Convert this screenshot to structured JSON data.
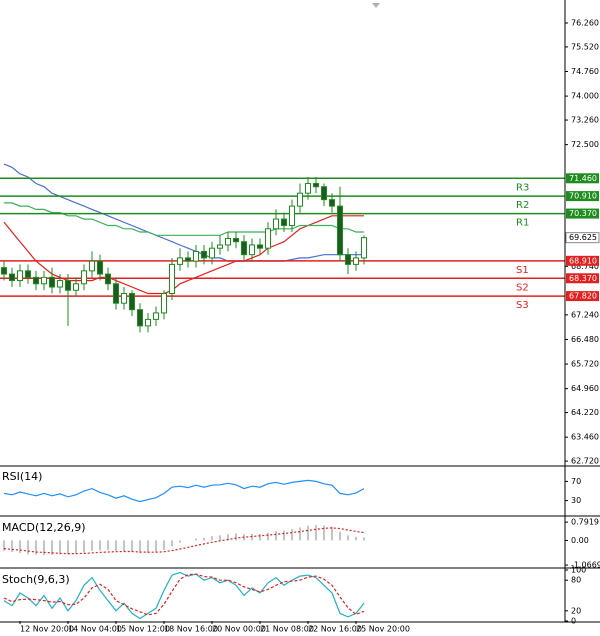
{
  "chart_data": [
    {
      "type": "candlestick",
      "categories": [
        null,
        null,
        "12 Nov 20:00",
        null,
        null,
        null,
        null,
        null,
        "14 Nov 04:00",
        null,
        null,
        null,
        null,
        null,
        "15 Nov 12:00",
        null,
        null,
        null,
        null,
        null,
        "18 Nov 16:00",
        null,
        null,
        null,
        null,
        null,
        "20 Nov 00:00",
        null,
        null,
        null,
        null,
        null,
        "21 Nov 08:00",
        null,
        null,
        null,
        null,
        null,
        "22 Nov 16:00",
        null,
        null,
        null,
        null,
        null,
        "25 Nov 20:00",
        null
      ],
      "open": [
        68.7,
        68.5,
        68.3,
        68.6,
        68.4,
        68.2,
        68.4,
        68.1,
        68.3,
        68.0,
        68.2,
        68.6,
        68.9,
        68.5,
        68.2,
        67.6,
        67.9,
        67.4,
        66.9,
        67.1,
        67.3,
        67.9,
        68.8,
        69.0,
        68.9,
        69.2,
        69.0,
        69.3,
        69.4,
        69.6,
        69.5,
        69.1,
        69.4,
        69.3,
        69.9,
        70.2,
        70.0,
        70.6,
        71.0,
        71.3,
        71.2,
        70.8,
        70.6,
        69.1,
        68.8,
        69.0
      ],
      "high": [
        68.9,
        68.7,
        68.8,
        68.8,
        68.6,
        68.6,
        68.7,
        68.5,
        68.5,
        68.4,
        68.8,
        69.2,
        69.1,
        68.7,
        68.4,
        68.1,
        68.0,
        67.6,
        67.3,
        67.5,
        68.0,
        69.0,
        69.3,
        69.2,
        69.4,
        69.4,
        69.5,
        69.7,
        69.8,
        69.8,
        69.7,
        69.6,
        69.6,
        70.1,
        70.5,
        70.4,
        70.8,
        71.3,
        71.5,
        71.5,
        71.3,
        71.0,
        71.2,
        69.3,
        69.2,
        69.7
      ],
      "low": [
        68.3,
        68.1,
        68.1,
        68.2,
        68.0,
        68.0,
        67.9,
        67.9,
        66.9,
        67.8,
        68.0,
        68.4,
        68.3,
        68.0,
        67.4,
        67.4,
        67.2,
        66.7,
        66.7,
        66.9,
        67.1,
        67.7,
        68.6,
        68.7,
        68.7,
        68.8,
        68.8,
        69.1,
        69.2,
        69.3,
        68.9,
        68.9,
        69.1,
        69.1,
        69.7,
        69.8,
        69.8,
        70.4,
        70.8,
        71.0,
        70.6,
        70.4,
        68.9,
        68.5,
        68.6,
        68.8
      ],
      "close": [
        68.5,
        68.3,
        68.6,
        68.4,
        68.2,
        68.4,
        68.1,
        68.3,
        68.0,
        68.2,
        68.6,
        68.9,
        68.5,
        68.2,
        67.6,
        67.9,
        67.4,
        66.9,
        67.1,
        67.3,
        67.9,
        68.8,
        69.0,
        68.9,
        69.2,
        69.0,
        69.3,
        69.4,
        69.6,
        69.5,
        69.1,
        69.4,
        69.3,
        69.9,
        70.2,
        70.0,
        70.6,
        71.0,
        71.3,
        71.2,
        70.8,
        70.6,
        69.1,
        68.8,
        69.0,
        69.625
      ],
      "up_color": "#ffffff",
      "down_color": "#1b5e20",
      "candle_edge": "#1e8c1e",
      "moving_averages": [
        {
          "color": "#e32020",
          "values": [
            70.1,
            69.8,
            69.5,
            69.2,
            68.9,
            68.7,
            68.5,
            68.4,
            68.3,
            68.3,
            68.3,
            68.3,
            68.4,
            68.4,
            68.3,
            68.2,
            68.1,
            68.0,
            67.9,
            67.9,
            67.9,
            68.0,
            68.2,
            68.3,
            68.4,
            68.5,
            68.6,
            68.7,
            68.8,
            68.9,
            68.9,
            69.0,
            69.1,
            69.3,
            69.4,
            69.5,
            69.7,
            69.9,
            70.0,
            70.1,
            70.2,
            70.3,
            70.3,
            70.3,
            70.3,
            70.3
          ]
        },
        {
          "color": "#4a6fd0",
          "values": [
            71.9,
            71.8,
            71.6,
            71.5,
            71.3,
            71.2,
            71.0,
            70.9,
            70.8,
            70.7,
            70.6,
            70.5,
            70.4,
            70.3,
            70.2,
            70.1,
            70.0,
            69.9,
            69.8,
            69.7,
            69.6,
            69.5,
            69.4,
            69.3,
            69.2,
            69.1,
            69.0,
            69.0,
            68.9,
            68.9,
            68.9,
            68.9,
            68.9,
            68.9,
            68.9,
            68.9,
            68.95,
            69.0,
            69.0,
            69.05,
            69.1,
            69.1,
            69.1,
            69.1,
            69.1,
            69.1
          ]
        },
        {
          "color": "#3fae5a",
          "values": [
            70.7,
            70.7,
            70.6,
            70.6,
            70.5,
            70.5,
            70.4,
            70.4,
            70.3,
            70.3,
            70.2,
            70.2,
            70.1,
            70.0,
            70.0,
            69.9,
            69.9,
            69.8,
            69.8,
            69.7,
            69.7,
            69.7,
            69.7,
            69.7,
            69.7,
            69.7,
            69.7,
            69.7,
            69.8,
            69.8,
            69.8,
            69.8,
            69.8,
            69.8,
            69.9,
            69.9,
            69.9,
            70.0,
            70.0,
            70.0,
            70.0,
            70.0,
            69.9,
            69.9,
            69.8,
            69.8
          ]
        }
      ],
      "levels": [
        {
          "name": "R3",
          "value": 71.46,
          "label": "71.460",
          "color": "#1e8c1e"
        },
        {
          "name": "R2",
          "value": 70.91,
          "label": "70.910",
          "color": "#1e8c1e"
        },
        {
          "name": "R1",
          "value": 70.37,
          "label": "70.370",
          "color": "#1e8c1e"
        },
        {
          "name": "S1",
          "value": 68.91,
          "label": "68.910",
          "color": "#e32020"
        },
        {
          "name": "S2",
          "value": 68.37,
          "label": "68.370",
          "color": "#e32020"
        },
        {
          "name": "S3",
          "value": 67.82,
          "label": "67.820",
          "color": "#e32020"
        }
      ],
      "last_price": {
        "value": 69.625,
        "label": "69.625"
      },
      "ylim": [
        62.6,
        76.97
      ],
      "yticks": [
        {
          "value": 76.26,
          "label": "76.260"
        },
        {
          "value": 75.52,
          "label": "75.520"
        },
        {
          "value": 74.76,
          "label": "74.760"
        },
        {
          "value": 74.0,
          "label": "74.000"
        },
        {
          "value": 73.26,
          "label": "73.260"
        },
        {
          "value": 72.5,
          "label": "72.500"
        },
        {
          "value": 68.74,
          "label": "68.740"
        },
        {
          "value": 67.24,
          "label": "67.240"
        },
        {
          "value": 66.48,
          "label": "66.480"
        },
        {
          "value": 65.72,
          "label": "65.720"
        },
        {
          "value": 64.96,
          "label": "64.960"
        },
        {
          "value": 64.22,
          "label": "64.220"
        },
        {
          "value": 63.46,
          "label": "63.460"
        },
        {
          "value": 62.72,
          "label": "62.720"
        }
      ]
    },
    {
      "type": "line",
      "title": "RSI(14)",
      "color": "#1e90ff",
      "ylim": [
        0,
        100
      ],
      "yticks": [
        70,
        30
      ],
      "values": [
        45,
        42,
        48,
        44,
        40,
        45,
        40,
        44,
        38,
        42,
        50,
        55,
        47,
        42,
        35,
        40,
        33,
        28,
        32,
        36,
        45,
        58,
        60,
        57,
        62,
        58,
        62,
        63,
        66,
        63,
        55,
        60,
        58,
        65,
        68,
        64,
        68,
        70,
        72,
        70,
        65,
        62,
        45,
        42,
        46,
        55
      ]
    },
    {
      "type": "macd",
      "title": "MACD(12,26,9)",
      "ylim": [
        -1.15,
        0.97
      ],
      "yticks": [
        0.7919,
        {
          "value": 0,
          "label": "0.00"
        },
        -1.0669
      ],
      "histogram": {
        "color": "#b0b0b0",
        "values": [
          -0.45,
          -0.5,
          -0.55,
          -0.6,
          -0.62,
          -0.63,
          -0.62,
          -0.6,
          -0.6,
          -0.58,
          -0.52,
          -0.45,
          -0.43,
          -0.42,
          -0.45,
          -0.46,
          -0.5,
          -0.55,
          -0.55,
          -0.52,
          -0.42,
          -0.25,
          -0.1,
          0.0,
          0.08,
          0.12,
          0.18,
          0.22,
          0.27,
          0.3,
          0.27,
          0.28,
          0.28,
          0.33,
          0.4,
          0.42,
          0.48,
          0.56,
          0.63,
          0.66,
          0.65,
          0.6,
          0.38,
          0.22,
          0.15,
          0.13
        ]
      },
      "signal": {
        "color": "#e32020",
        "values": [
          -0.35,
          -0.39,
          -0.42,
          -0.46,
          -0.5,
          -0.52,
          -0.54,
          -0.56,
          -0.57,
          -0.57,
          -0.56,
          -0.54,
          -0.52,
          -0.5,
          -0.49,
          -0.48,
          -0.48,
          -0.5,
          -0.51,
          -0.51,
          -0.49,
          -0.44,
          -0.37,
          -0.3,
          -0.22,
          -0.15,
          -0.08,
          -0.02,
          0.04,
          0.1,
          0.14,
          0.17,
          0.2,
          0.23,
          0.26,
          0.3,
          0.34,
          0.38,
          0.43,
          0.48,
          0.52,
          0.54,
          0.51,
          0.45,
          0.39,
          0.34
        ]
      }
    },
    {
      "type": "stochastic",
      "title": "Stoch(9,6,3)",
      "ylim": [
        0,
        100
      ],
      "yticks": [
        100,
        80,
        20,
        0
      ],
      "main": {
        "color": "#20b2c8",
        "values": [
          40,
          30,
          55,
          45,
          30,
          50,
          25,
          45,
          20,
          40,
          70,
          85,
          60,
          40,
          20,
          35,
          15,
          5,
          15,
          25,
          60,
          90,
          95,
          88,
          92,
          80,
          85,
          75,
          80,
          70,
          50,
          65,
          55,
          75,
          85,
          70,
          80,
          88,
          90,
          85,
          70,
          55,
          15,
          8,
          15,
          35
        ]
      },
      "signal": {
        "color": "#e32020",
        "values": [
          45,
          38,
          42,
          43,
          42,
          40,
          37,
          38,
          32,
          33,
          45,
          65,
          72,
          62,
          40,
          32,
          24,
          18,
          12,
          15,
          33,
          58,
          82,
          91,
          92,
          87,
          86,
          80,
          80,
          75,
          67,
          62,
          57,
          62,
          70,
          77,
          78,
          80,
          86,
          88,
          82,
          70,
          47,
          26,
          13,
          19
        ]
      }
    }
  ]
}
